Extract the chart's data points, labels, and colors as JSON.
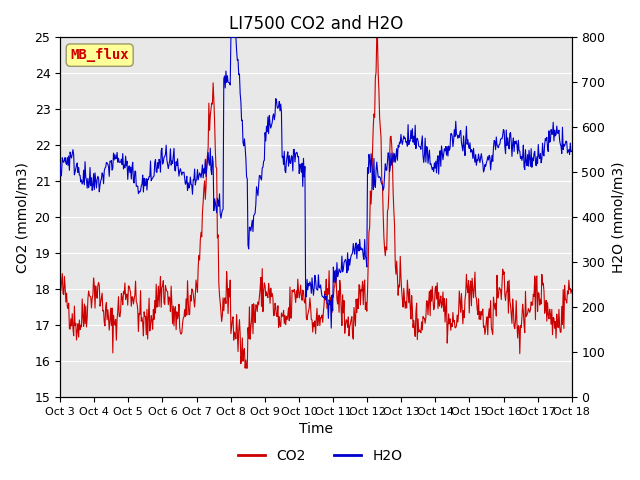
{
  "title": "LI7500 CO2 and H2O",
  "xlabel": "Time",
  "ylabel_left": "CO2 (mmol/m3)",
  "ylabel_right": "H2O (mmol/m3)",
  "ylim_left": [
    15.0,
    25.0
  ],
  "ylim_right": [
    0,
    800
  ],
  "yticks_left": [
    15.0,
    16.0,
    17.0,
    18.0,
    19.0,
    20.0,
    21.0,
    22.0,
    23.0,
    24.0,
    25.0
  ],
  "yticks_right": [
    0,
    100,
    200,
    300,
    400,
    500,
    600,
    700,
    800
  ],
  "xtick_labels": [
    "Oct 3",
    "Oct 4",
    "Oct 5",
    "Oct 6",
    "Oct 7",
    "Oct 8",
    "Oct 9",
    "Oct 10",
    "Oct 11",
    "Oct 12",
    "Oct 13",
    "Oct 14",
    "Oct 15",
    "Oct 16",
    "Oct 17",
    "Oct 18"
  ],
  "co2_color": "#CC0000",
  "h2o_color": "#0000CC",
  "bg_color": "#E8E8E8",
  "annotation_text": "MB_flux",
  "annotation_color": "#CC0000",
  "annotation_bg": "#FFFF99",
  "legend_co2": "CO2",
  "legend_h2o": "H2O",
  "title_fontsize": 12,
  "axis_label_fontsize": 10,
  "tick_fontsize": 9
}
